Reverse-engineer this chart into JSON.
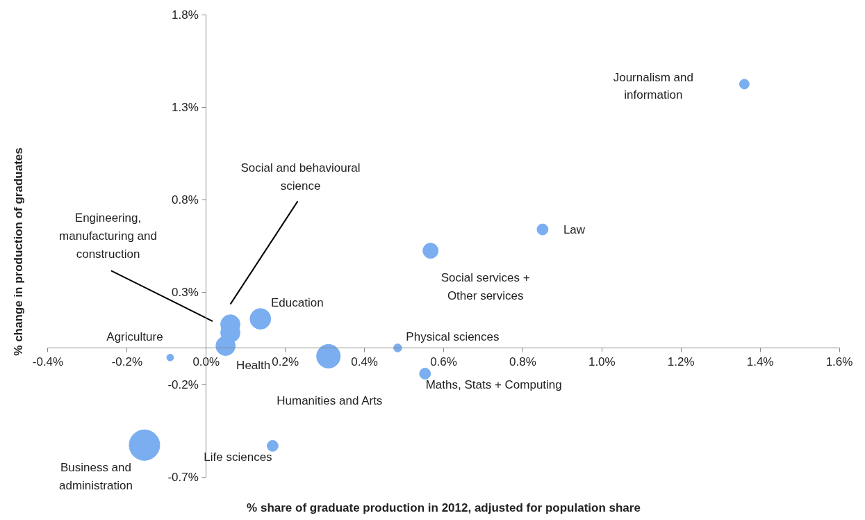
{
  "chart_data": {
    "type": "bubble",
    "xlabel": "% share of graduate production in 2012, adjusted for population share",
    "ylabel": "% change in production of graduates",
    "x": [
      1.36,
      0.85,
      0.567,
      0.484,
      0.553,
      0.309,
      0.137,
      0.061,
      0.061,
      0.049,
      -0.091,
      -0.156,
      0.168
    ],
    "values": [
      1.425,
      0.64,
      0.525,
      0.0,
      -0.139,
      -0.045,
      0.157,
      0.127,
      0.082,
      0.011,
      -0.052,
      -0.525,
      -0.529
    ],
    "sizes": [
      0.1,
      0.13,
      0.25,
      0.07,
      0.13,
      0.6,
      0.46,
      0.4,
      0.4,
      0.4,
      0.05,
      1,
      0.13
    ],
    "color": "#7aaef0",
    "annotations": [
      "Journalism and information",
      {
        "text": "Law",
        "x": 0.85,
        "y": 0.64
      },
      {
        "text": "Social services + Other services",
        "x": 0.567,
        "y": 0.525
      },
      {
        "text": "Physical sciences",
        "x": 0.484,
        "y": 0.0
      },
      {
        "text": "Maths, Stats + Computing",
        "x": 0.553,
        "y": -0.139
      },
      "Humanities and Arts",
      {
        "text": "Education",
        "x": 0.137,
        "y": 0.157
      },
      "Social and behavioural science",
      "Engineering, manufacturing and construction",
      {
        "text": "Health",
        "x": 0.049,
        "y": 0.011
      },
      {
        "text": "Agriculture",
        "x": -0.091,
        "y": -0.052
      },
      "Business and administration",
      {
        "text": "Life sciences",
        "x": 0.168,
        "y": -0.529
      }
    ],
    "xlim": [
      -0.4,
      1.6
    ],
    "ylim": [
      -0.7,
      1.8
    ],
    "xticks": [
      {
        "value": -0.4,
        "label": "-0.4%"
      },
      {
        "value": -0.2,
        "label": "-0.2%"
      },
      {
        "value": 0.0,
        "label": "0.0%"
      },
      {
        "value": 0.2,
        "label": "0.2%"
      },
      {
        "value": 0.4,
        "label": "0.4%"
      },
      {
        "value": 0.6,
        "label": "0.6%"
      },
      {
        "value": 0.8,
        "label": "0.8%"
      },
      {
        "value": 1.0,
        "label": "1.0%"
      },
      {
        "value": 1.2,
        "label": "1.2%"
      },
      {
        "value": 1.4,
        "label": "1.4%"
      },
      {
        "value": 1.6,
        "label": "1.6%"
      }
    ],
    "yticks": [
      {
        "value": -0.7,
        "label": "-0.7%"
      },
      {
        "value": -0.2,
        "label": "-0.2%"
      },
      {
        "value": 0.3,
        "label": "0.3%"
      },
      {
        "value": 0.8,
        "label": "0.8%"
      },
      {
        "value": 1.3,
        "label": "1.3%"
      },
      {
        "value": 1.8,
        "label": "1.8%"
      }
    ],
    "grid": false,
    "legend": false
  }
}
